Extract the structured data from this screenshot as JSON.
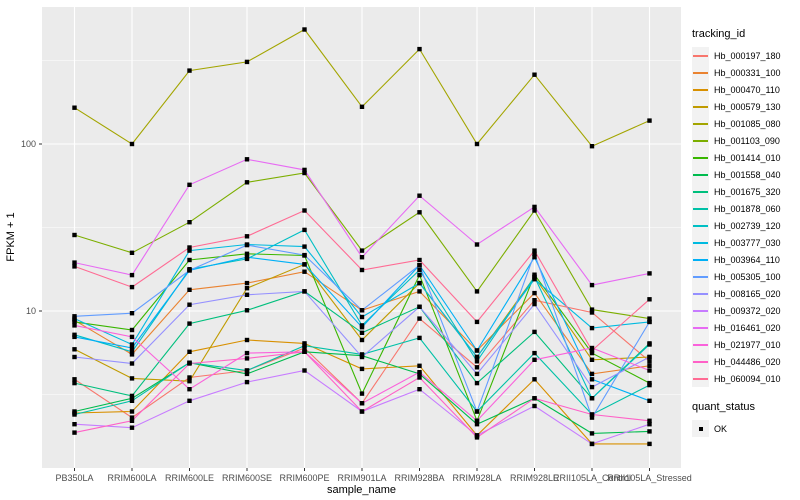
{
  "chart_data": {
    "type": "line",
    "title": "",
    "xlabel": "sample_name",
    "ylabel": "FPKM + 1",
    "y_scale": "log10",
    "y_ticks": [
      "100",
      "10"
    ],
    "y_tick_values": [
      100,
      10
    ],
    "grid": "on",
    "panel_background": "#EBEBEB",
    "gridline_color": "#FFFFFF",
    "axis_text_color": "#4D4D4D",
    "categories": [
      "PB350LA",
      "RRIM600LA",
      "RRIM600LE",
      "RRIM600SE",
      "RRIM600PE",
      "RRIM901LA",
      "RRIM928BA",
      "RRIM928LA",
      "RRIM928LE",
      "RRII105LA_Control",
      "RRII105LA_Stressed"
    ],
    "legend": {
      "title": "tracking_id",
      "position": "right"
    },
    "legend2": {
      "title": "quant_status",
      "items": [
        {
          "label": "OK",
          "marker": "black-square"
        }
      ]
    },
    "series": [
      {
        "name": "Hb_000197_180",
        "color": "#F8766D",
        "values": [
          3.9,
          2.3,
          4.0,
          4.4,
          6.0,
          2.8,
          9.0,
          4.6,
          11.6,
          9.8,
          5.0
        ]
      },
      {
        "name": "Hb_000331_100",
        "color": "#EA8331",
        "values": [
          8.8,
          5.5,
          13.4,
          14.7,
          17.2,
          10.1,
          13.1,
          5.8,
          12.8,
          4.2,
          4.7
        ]
      },
      {
        "name": "Hb_000470_110",
        "color": "#D89000",
        "values": [
          2.45,
          2.5,
          5.7,
          6.7,
          6.4,
          4.5,
          4.7,
          1.8,
          3.9,
          1.6,
          1.6
        ]
      },
      {
        "name": "Hb_000579_130",
        "color": "#C09B00",
        "values": [
          5.9,
          3.95,
          3.8,
          13.7,
          19.0,
          6.7,
          14.7,
          5.3,
          16.0,
          5.1,
          5.3
        ]
      },
      {
        "name": "Hb_001085_080",
        "color": "#A3A500",
        "values": [
          165,
          100,
          275,
          310,
          485,
          167,
          370,
          100,
          260,
          97,
          138
        ]
      },
      {
        "name": "Hb_001103_090",
        "color": "#7CAE00",
        "values": [
          28.5,
          22.3,
          34,
          59,
          67,
          23,
          39,
          13.1,
          40,
          10.2,
          9.0
        ]
      },
      {
        "name": "Hb_001414_010",
        "color": "#39B600",
        "values": [
          8.6,
          7.7,
          20.2,
          22,
          21.5,
          3.2,
          16.4,
          2.2,
          16.5,
          5.6,
          3.7
        ]
      },
      {
        "name": "Hb_001558_040",
        "color": "#00BB4E",
        "values": [
          2.5,
          3.0,
          4.9,
          4.2,
          5.7,
          5.4,
          4.2,
          2.1,
          3.0,
          1.85,
          1.9
        ]
      },
      {
        "name": "Hb_001675_320",
        "color": "#00BF7D",
        "values": [
          3.7,
          3.1,
          8.4,
          10.1,
          13.1,
          7.4,
          10.6,
          3.7,
          7.5,
          3.0,
          6.4
        ]
      },
      {
        "name": "Hb_001878_060",
        "color": "#00C1A7",
        "values": [
          2.4,
          2.9,
          4.9,
          4.4,
          6.2,
          5.5,
          6.9,
          2.5,
          5.6,
          2.4,
          3.6
        ]
      },
      {
        "name": "Hb_002739_120",
        "color": "#00BFC4",
        "values": [
          7.2,
          5.7,
          17.8,
          20.5,
          30.6,
          8.2,
          17.6,
          5.0,
          16.0,
          3.0,
          6.3
        ]
      },
      {
        "name": "Hb_003777_030",
        "color": "#00BAE0",
        "values": [
          9.0,
          6.3,
          23,
          25,
          24.3,
          9.2,
          14.7,
          5.3,
          15.5,
          7.9,
          8.6
        ]
      },
      {
        "name": "Hb_003964_110",
        "color": "#00B0F6",
        "values": [
          7.0,
          6.0,
          17.5,
          21,
          19,
          8.0,
          18.8,
          5.8,
          21,
          3.9,
          2.9
        ]
      },
      {
        "name": "Hb_005305_100",
        "color": "#619CFF",
        "values": [
          9.3,
          9.7,
          17.5,
          24.8,
          21.6,
          10.1,
          18.8,
          2.5,
          22,
          2.3,
          8.6
        ]
      },
      {
        "name": "Hb_008165_020",
        "color": "#9590FF",
        "values": [
          5.3,
          4.85,
          10.9,
          12.5,
          13.1,
          5.3,
          10.6,
          4.2,
          11.0,
          3.5,
          5.3
        ]
      },
      {
        "name": "Hb_009372_020",
        "color": "#C77CFF",
        "values": [
          2.1,
          2.0,
          2.9,
          3.75,
          4.4,
          2.5,
          3.4,
          1.8,
          2.7,
          1.6,
          2.1
        ]
      },
      {
        "name": "Hb_016461_020",
        "color": "#E76BF3",
        "values": [
          19.5,
          16.4,
          57,
          81,
          70,
          21,
          49,
          25,
          42,
          14.3,
          16.8
        ]
      },
      {
        "name": "Hb_021977_010",
        "color": "#FA62DB",
        "values": [
          8.2,
          7.0,
          3.4,
          5.6,
          5.7,
          2.8,
          4.3,
          2.2,
          5.1,
          6.0,
          4.4
        ]
      },
      {
        "name": "Hb_044486_020",
        "color": "#FF61C7",
        "values": [
          1.87,
          2.2,
          4.85,
          5.2,
          5.7,
          2.5,
          4.0,
          1.75,
          3.0,
          2.4,
          2.2
        ]
      },
      {
        "name": "Hb_060094_010",
        "color": "#FF6B94",
        "values": [
          18.5,
          13.9,
          24,
          28,
          40,
          17.6,
          20.2,
          8.6,
          23,
          5.8,
          11.75
        ]
      }
    ]
  }
}
